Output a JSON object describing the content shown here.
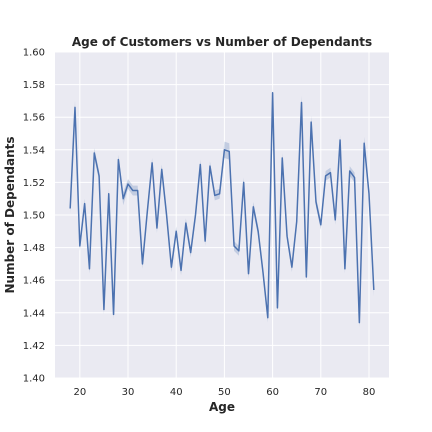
{
  "chart_data": {
    "type": "line",
    "title": "Age of Customers vs Number of Dependants",
    "xlabel": "Age",
    "ylabel": "Number of Dependants",
    "xlim": [
      14.85,
      84.15
    ],
    "ylim": [
      1.4,
      1.6
    ],
    "xticks": [
      20,
      30,
      40,
      50,
      60,
      70,
      80
    ],
    "yticks": [
      "1.40",
      "1.42",
      "1.44",
      "1.46",
      "1.48",
      "1.50",
      "1.52",
      "1.54",
      "1.56",
      "1.58",
      "1.60"
    ],
    "grid": true,
    "legend": "none",
    "colors": {
      "line": "#4c72b0",
      "band": "#4c72b0",
      "background": "#eaeaf2",
      "grid": "#ffffff"
    },
    "series": [
      {
        "x": [
          18,
          19,
          20,
          21,
          22,
          23,
          24,
          25,
          26,
          27,
          28,
          29,
          30,
          31,
          32,
          33,
          34,
          35,
          36,
          37,
          38,
          39,
          40,
          41,
          42,
          43,
          44,
          45,
          46,
          47,
          48,
          49,
          50,
          51,
          52,
          53,
          54,
          55,
          56,
          57,
          58,
          59,
          60,
          61,
          62,
          63,
          64,
          65,
          66,
          67,
          68,
          69,
          70,
          71,
          72,
          73,
          74,
          75,
          76,
          77,
          78,
          79,
          80,
          81
        ],
        "y": [
          1.504,
          1.566,
          1.481,
          1.507,
          1.467,
          1.538,
          1.524,
          1.442,
          1.513,
          1.439,
          1.534,
          1.51,
          1.519,
          1.515,
          1.515,
          1.47,
          1.502,
          1.532,
          1.492,
          1.528,
          1.5,
          1.468,
          1.49,
          1.466,
          1.495,
          1.477,
          1.5,
          1.531,
          1.484,
          1.53,
          1.512,
          1.513,
          1.54,
          1.539,
          1.481,
          1.478,
          1.52,
          1.464,
          1.505,
          1.49,
          1.465,
          1.437,
          1.575,
          1.443,
          1.535,
          1.487,
          1.468,
          1.496,
          1.569,
          1.462,
          1.557,
          1.508,
          1.494,
          1.524,
          1.526,
          1.497,
          1.546,
          1.467,
          1.527,
          1.523,
          1.434,
          1.544,
          1.513,
          1.454
        ],
        "band": [
          0.003,
          0.004,
          0.003,
          0.003,
          0.003,
          0.003,
          0.003,
          0.003,
          0.003,
          0.003,
          0.003,
          0.004,
          0.003,
          0.003,
          0.003,
          0.003,
          0.003,
          0.003,
          0.003,
          0.003,
          0.003,
          0.003,
          0.003,
          0.003,
          0.003,
          0.003,
          0.003,
          0.003,
          0.003,
          0.003,
          0.003,
          0.003,
          0.005,
          0.005,
          0.003,
          0.003,
          0.003,
          0.003,
          0.003,
          0.003,
          0.003,
          0.003,
          0.004,
          0.003,
          0.003,
          0.003,
          0.003,
          0.003,
          0.004,
          0.003,
          0.004,
          0.003,
          0.003,
          0.003,
          0.003,
          0.003,
          0.003,
          0.003,
          0.003,
          0.003,
          0.003,
          0.004,
          0.003,
          0.004
        ]
      }
    ]
  }
}
